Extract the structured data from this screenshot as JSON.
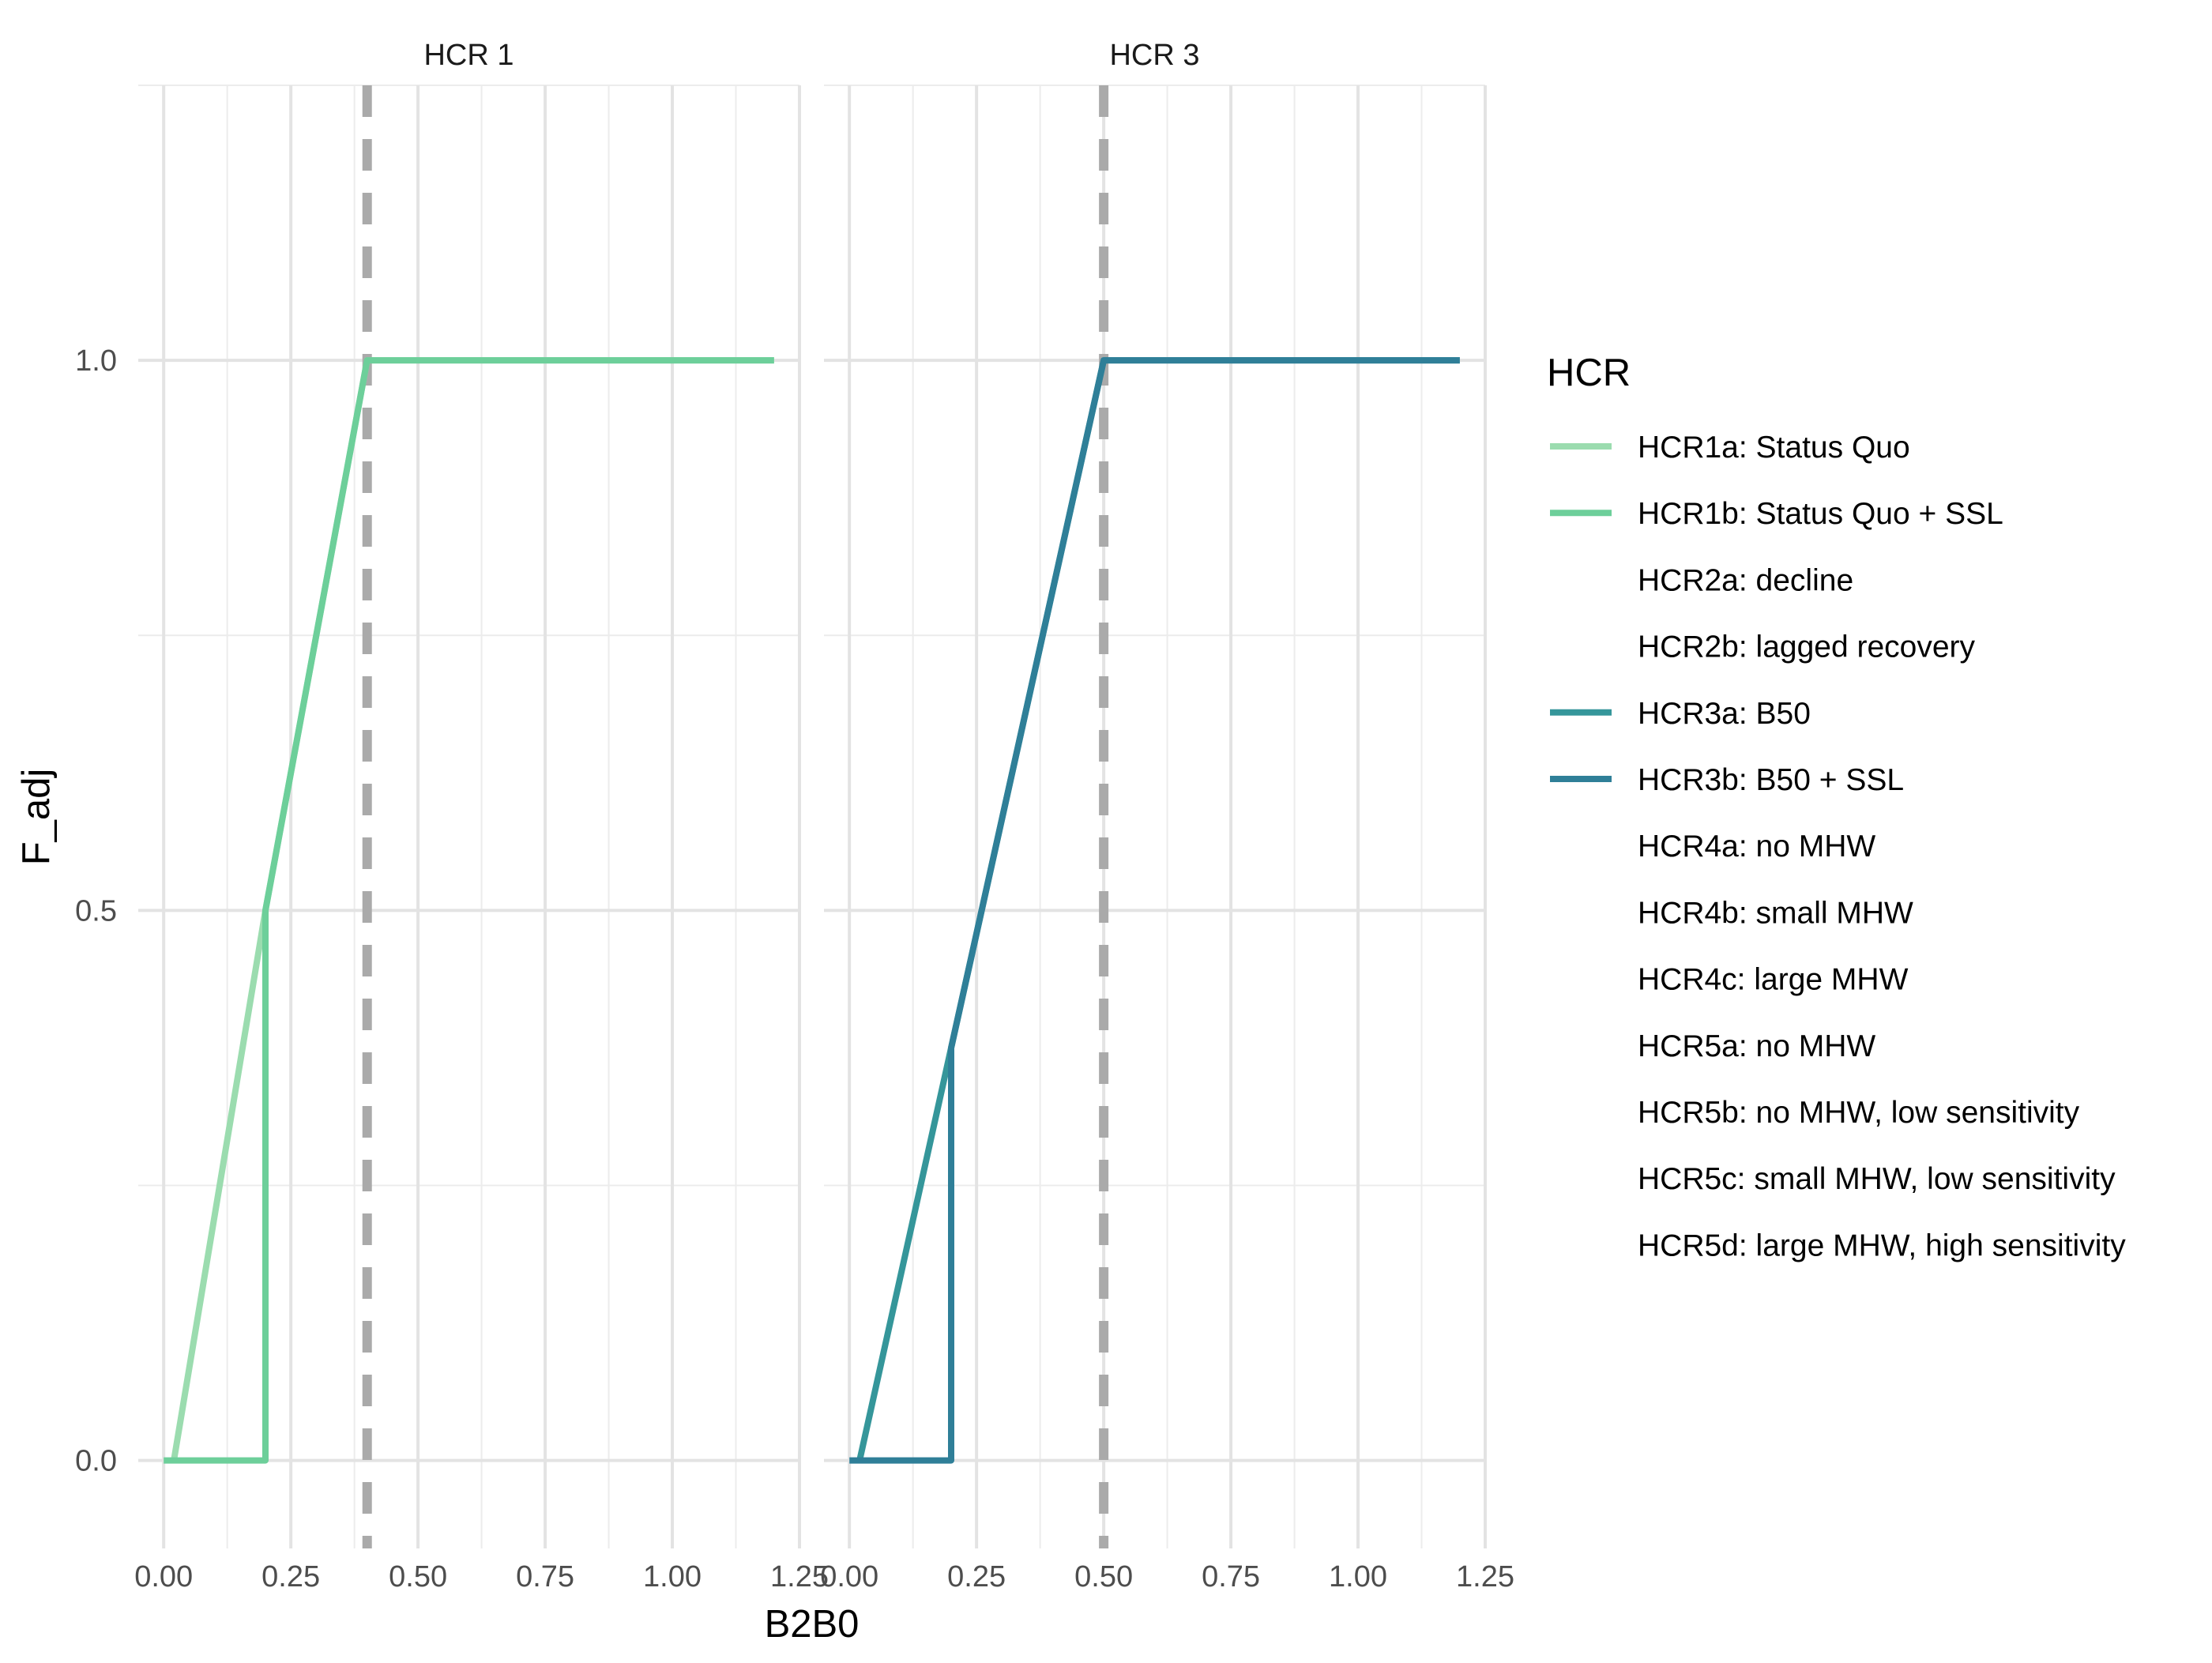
{
  "chart_data": {
    "type": "line",
    "xlabel": "B2B0",
    "ylabel": "F_adj",
    "xlim": [
      -0.05,
      1.25
    ],
    "ylim": [
      -0.08,
      1.25
    ],
    "x_ticks": [
      0,
      0.25,
      0.5,
      0.75,
      1,
      1.25
    ],
    "x_tick_labels": [
      "0.00",
      "0.25",
      "0.50",
      "0.75",
      "1.00",
      "1.25"
    ],
    "y_ticks": [
      0,
      0.5,
      1
    ],
    "y_tick_labels": [
      "0.0",
      "0.5",
      "1.0"
    ],
    "grid": true,
    "legend_position": "right",
    "legend": {
      "title": "HCR",
      "items": [
        {
          "label": "HCR1a: Status Quo",
          "color": "#9bdcaf",
          "shown": true
        },
        {
          "label": "HCR1b: Status Quo + SSL",
          "color": "#6dcf9a",
          "shown": true
        },
        {
          "label": "HCR2a: decline",
          "color": null,
          "shown": false
        },
        {
          "label": "HCR2b: lagged recovery",
          "color": null,
          "shown": false
        },
        {
          "label": "HCR3a: B50",
          "color": "#35969a",
          "shown": true
        },
        {
          "label": "HCR3b: B50 + SSL",
          "color": "#2f7f98",
          "shown": true
        },
        {
          "label": "HCR4a: no MHW",
          "color": null,
          "shown": false
        },
        {
          "label": "HCR4b: small MHW",
          "color": null,
          "shown": false
        },
        {
          "label": "HCR4c: large MHW",
          "color": null,
          "shown": false
        },
        {
          "label": "HCR5a: no MHW",
          "color": null,
          "shown": false
        },
        {
          "label": "HCR5b: no MHW, low sensitivity",
          "color": null,
          "shown": false
        },
        {
          "label": "HCR5c: small MHW, low sensitivity",
          "color": null,
          "shown": false
        },
        {
          "label": "HCR5d: large MHW, high sensitivity",
          "color": null,
          "shown": false
        }
      ]
    },
    "panels": [
      {
        "title": "HCR 1",
        "reference_line_x": 0.4,
        "series": [
          {
            "name": "HCR1a: Status Quo",
            "color": "#9bdcaf",
            "x": [
              0.02,
              0.2,
              0.4,
              1.2
            ],
            "y": [
              0,
              0.5,
              1,
              1
            ]
          },
          {
            "name": "HCR1b: Status Quo + SSL",
            "color": "#6dcf9a",
            "x": [
              0,
              0.2,
              0.2,
              0.4,
              1.2
            ],
            "y": [
              0,
              0,
              0.5,
              1,
              1
            ]
          }
        ]
      },
      {
        "title": "HCR 3",
        "reference_line_x": 0.5,
        "series": [
          {
            "name": "HCR3a: B50",
            "color": "#35969a",
            "x": [
              0.02,
              0.2,
              0.5,
              1.2
            ],
            "y": [
              0,
              0.375,
              1,
              1
            ]
          },
          {
            "name": "HCR3b: B50 + SSL",
            "color": "#2f7f98",
            "x": [
              0,
              0.2,
              0.2,
              0.5,
              1.2
            ],
            "y": [
              0,
              0,
              0.375,
              1,
              1
            ]
          }
        ]
      }
    ]
  }
}
